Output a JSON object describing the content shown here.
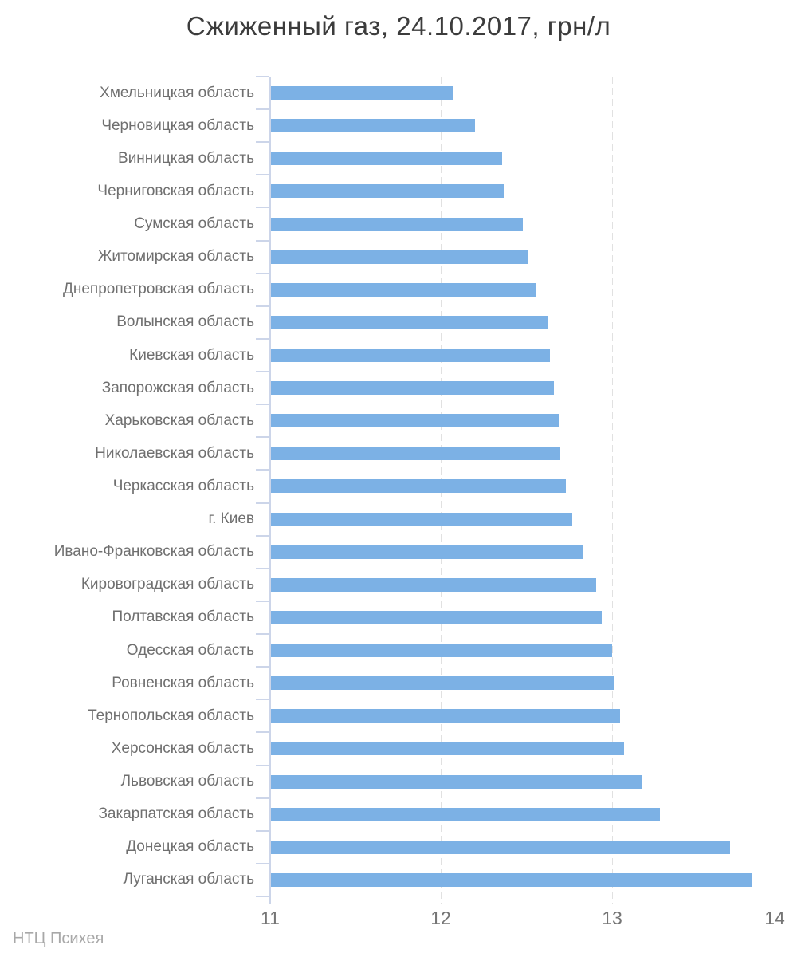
{
  "title": "Сжиженный газ, 24.10.2017, грн/л",
  "watermark": "НТЦ Психея",
  "colors": {
    "bar": "#7cb1e5",
    "axis_line": "#ccd5e9",
    "grid": "#e1e1e1",
    "plot_border": "#d5d5d5",
    "title_text": "#3c3c3c",
    "category_text": "#6f6f6f",
    "tick_text": "#757575",
    "watermark_text": "#a8a8a8",
    "background": "#ffffff"
  },
  "chart_data": {
    "type": "bar",
    "orientation": "horizontal",
    "title": "Сжиженный газ, 24.10.2017, грн/л",
    "xlabel": "",
    "ylabel": "",
    "xlim": [
      11,
      14
    ],
    "x_ticks": [
      11,
      12,
      13,
      14
    ],
    "grid": true,
    "legend": "none",
    "unit": "грн/л",
    "categories": [
      "Хмельницкая область",
      "Черновицкая область",
      "Винницкая область",
      "Черниговская область",
      "Сумская область",
      "Житомирская область",
      "Днепропетровская область",
      "Волынская область",
      "Киевская область",
      "Запорожская область",
      "Харьковская область",
      "Николаевская область",
      "Черкасская область",
      "г. Киев",
      "Ивано-Франковская область",
      "Кировоградская область",
      "Полтавская область",
      "Одесская область",
      "Ровненская область",
      "Тернопольская область",
      "Херсонская область",
      "Львовская область",
      "Закарпатская область",
      "Донецкая область",
      "Луганская область"
    ],
    "values": [
      12.07,
      12.2,
      12.36,
      12.37,
      12.48,
      12.51,
      12.56,
      12.63,
      12.64,
      12.66,
      12.69,
      12.7,
      12.73,
      12.77,
      12.83,
      12.91,
      12.94,
      13.0,
      13.01,
      13.05,
      13.07,
      13.18,
      13.28,
      13.69,
      13.82
    ],
    "source": "НТЦ Психея"
  }
}
